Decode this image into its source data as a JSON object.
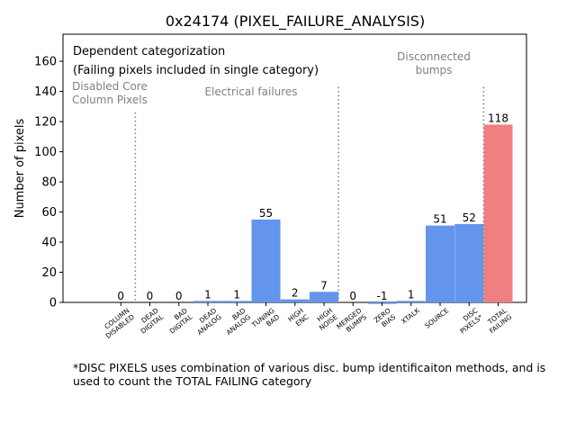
{
  "chart_data": {
    "type": "bar",
    "title": "0x24174 (PIXEL_FAILURE_ANALYSIS)",
    "subtitle_lines": [
      "Dependent categorization",
      "(Failing pixels included in single category)"
    ],
    "xlabel": "",
    "ylabel": "Number of pixels",
    "ylim": [
      0,
      178
    ],
    "yticks": [
      0,
      20,
      40,
      60,
      80,
      100,
      120,
      140,
      160
    ],
    "grid": false,
    "categories": [
      {
        "lines": [
          "COLUMN",
          "DISABLED"
        ],
        "value": 0,
        "color": "#6495ED"
      },
      {
        "lines": [
          "DEAD",
          "DIGITAL"
        ],
        "value": 0,
        "color": "#6495ED"
      },
      {
        "lines": [
          "BAD",
          "DIGITAL"
        ],
        "value": 0,
        "color": "#6495ED"
      },
      {
        "lines": [
          "DEAD",
          "ANALOG"
        ],
        "value": 1,
        "color": "#6495ED"
      },
      {
        "lines": [
          "BAD",
          "ANALOG"
        ],
        "value": 1,
        "color": "#6495ED"
      },
      {
        "lines": [
          "TUNING",
          "BAD"
        ],
        "value": 55,
        "color": "#6495ED"
      },
      {
        "lines": [
          "HIGH",
          "ENC"
        ],
        "value": 2,
        "color": "#6495ED"
      },
      {
        "lines": [
          "HIGH",
          "NOISE"
        ],
        "value": 7,
        "color": "#6495ED"
      },
      {
        "lines": [
          "MERGED",
          "BUMPS"
        ],
        "value": 0,
        "color": "#6495ED"
      },
      {
        "lines": [
          "ZERO",
          "BIAS"
        ],
        "value": -1,
        "color": "#6495ED"
      },
      {
        "lines": [
          "XTALK"
        ],
        "value": 1,
        "color": "#6495ED"
      },
      {
        "lines": [
          "SOURCE"
        ],
        "value": 51,
        "color": "#6495ED"
      },
      {
        "lines": [
          "DISC",
          "PIXELS*"
        ],
        "value": 52,
        "color": "#6495ED"
      },
      {
        "lines": [
          "TOTAL",
          "FAILING"
        ],
        "value": 118,
        "color": "#F08080"
      }
    ],
    "separators": [
      {
        "after_index": 0,
        "top_value": 126
      },
      {
        "after_index": 7,
        "top_value": 143
      },
      {
        "after_index": 12,
        "top_value": 143
      }
    ],
    "section_labels": [
      {
        "lines": [
          "Disabled Core",
          "Column Pixels"
        ]
      },
      {
        "lines": [
          "Electrical failures"
        ]
      },
      {
        "lines": [
          "Disconnected",
          "bumps"
        ]
      }
    ],
    "footnote": [
      "*DISC PIXELS uses combination of various disc. bump identificaiton methods, and is",
      "used to count the TOTAL FAILING category"
    ]
  }
}
